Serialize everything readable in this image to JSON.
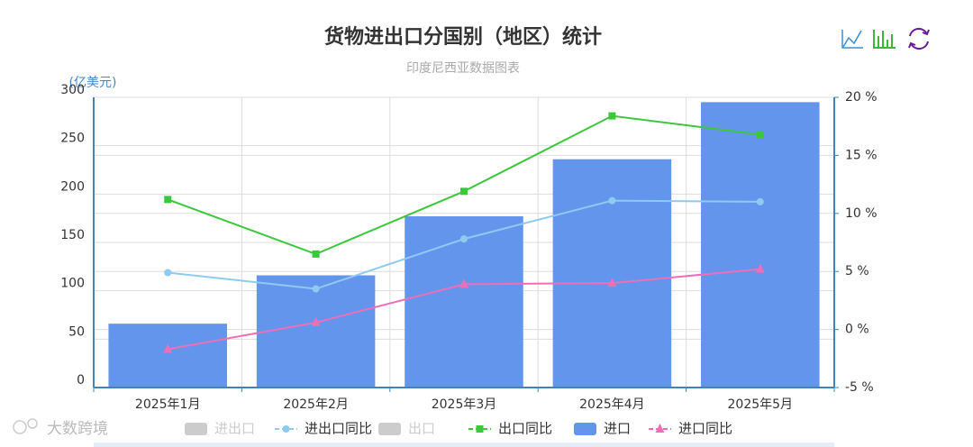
{
  "chart_data": {
    "type": "bar",
    "title": "货物进出口分国别（地区）统计",
    "subtitle": "印度尼西亚数据图表",
    "y_axis_label": "(亿美元)",
    "watermark": "大数跨境",
    "categories": [
      "2025年1月",
      "2025年2月",
      "2025年3月",
      "2025年4月",
      "2025年5月"
    ],
    "ylim": [
      0,
      300
    ],
    "yticks": [
      0,
      50,
      100,
      150,
      200,
      250,
      300
    ],
    "y2lim": [
      -5,
      20
    ],
    "y2ticks": [
      {
        "value": -5,
        "label": "-5 %"
      },
      {
        "value": 0,
        "label": "0 %"
      },
      {
        "value": 5,
        "label": "5 %"
      },
      {
        "value": 10,
        "label": "10 %"
      },
      {
        "value": 15,
        "label": "15 %"
      },
      {
        "value": 20,
        "label": "20 %"
      }
    ],
    "grid": true,
    "legend": "bottom",
    "series": [
      {
        "name": "进出口",
        "type": "bar",
        "color": "#cccccc",
        "visible": false,
        "values": [
          null,
          null,
          null,
          null,
          null
        ]
      },
      {
        "name": "进出口同比",
        "type": "line",
        "marker": "circle",
        "axis": "y2",
        "color": "#8ecbf0",
        "visible": true,
        "values": [
          4.9,
          3.5,
          7.8,
          11.1,
          11.0
        ]
      },
      {
        "name": "出口",
        "type": "bar",
        "color": "#cccccc",
        "visible": false,
        "values": [
          null,
          null,
          null,
          null,
          null
        ]
      },
      {
        "name": "出口同比",
        "type": "line",
        "marker": "square",
        "axis": "y2",
        "color": "#3cc83c",
        "visible": true,
        "values": [
          11.2,
          6.5,
          11.9,
          18.4,
          16.8
        ]
      },
      {
        "name": "进口",
        "type": "bar",
        "color": "#6495ed",
        "visible": true,
        "values": [
          66,
          116,
          177,
          236,
          295
        ]
      },
      {
        "name": "进口同比",
        "type": "line",
        "marker": "triangle",
        "axis": "y2",
        "color": "#ee6eb7",
        "visible": true,
        "values": [
          -1.7,
          0.6,
          3.9,
          4.0,
          5.2
        ]
      }
    ]
  }
}
